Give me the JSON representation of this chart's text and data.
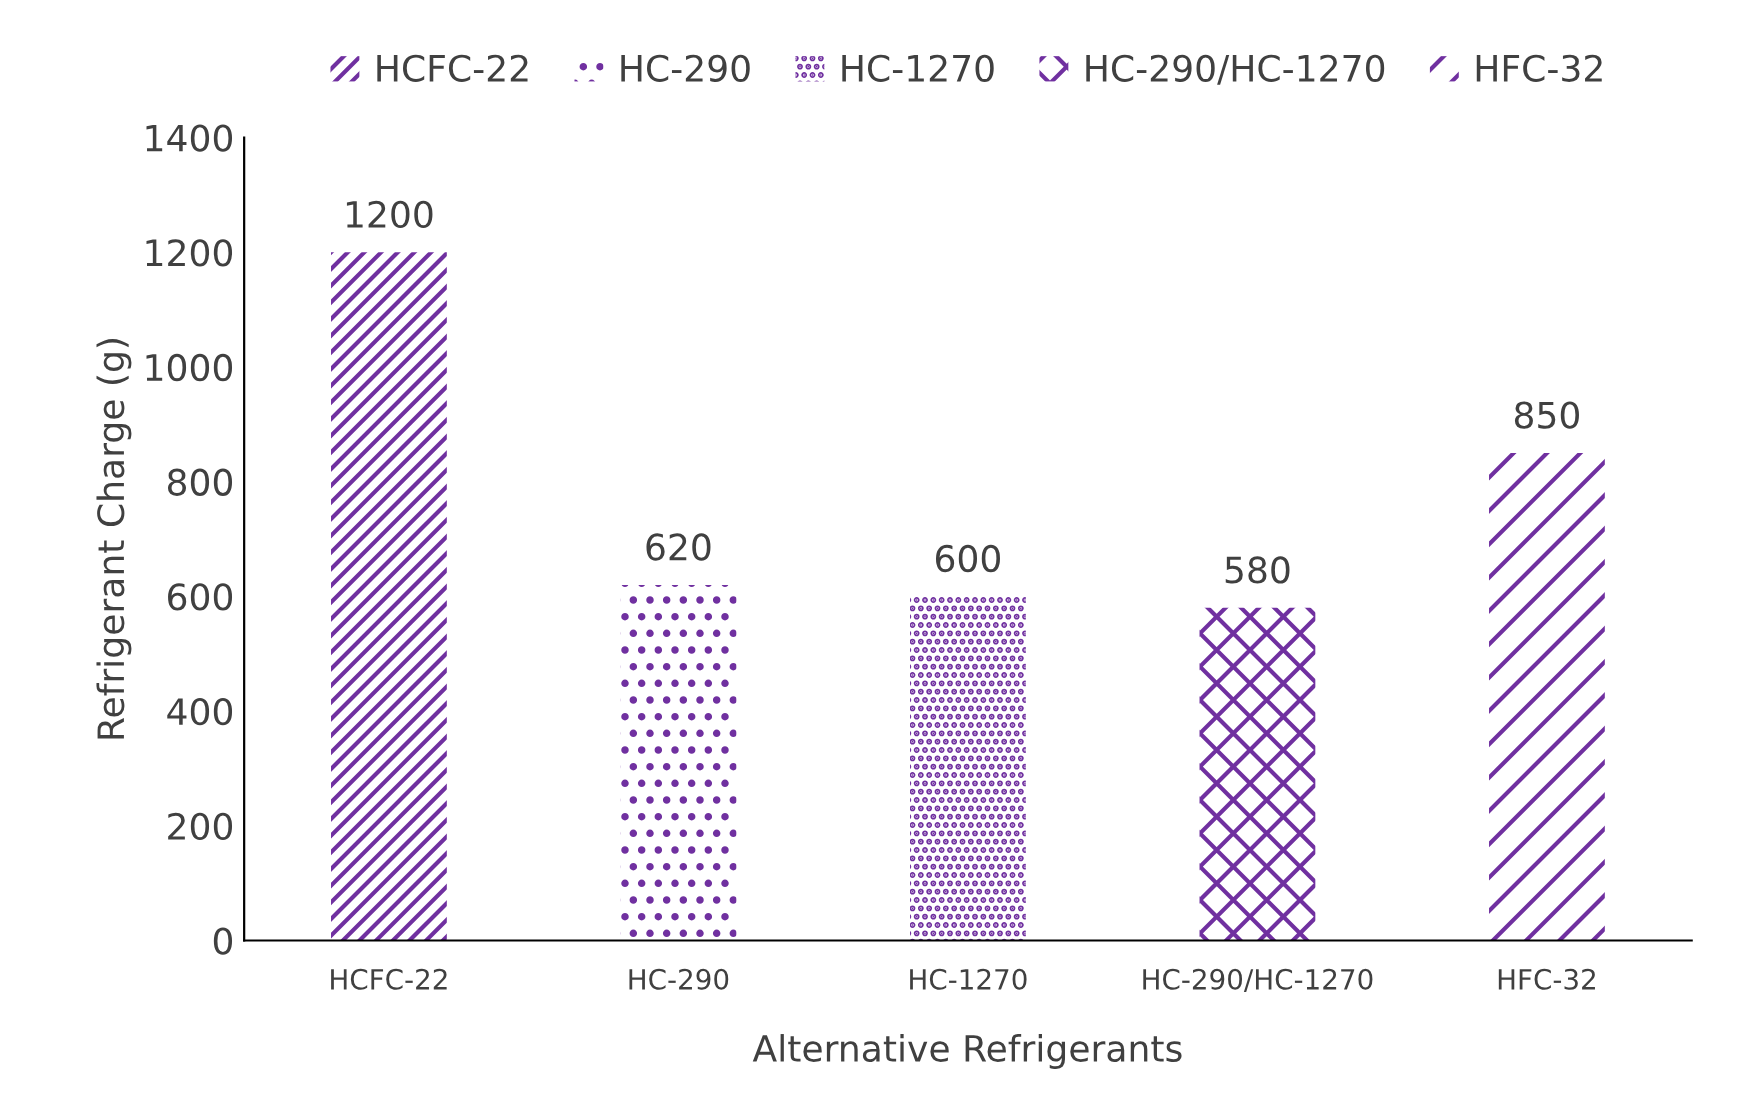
{
  "chart_data": {
    "type": "bar",
    "xlabel": "Alternative Refrigerants",
    "ylabel": "Refrigerant Charge (g)",
    "categories": [
      "HCFC-22",
      "HC-290",
      "HC-1270",
      "HC-290/HC-1270",
      "HFC-32"
    ],
    "series": [
      {
        "name": "HCFC-22",
        "color": "#7030a0",
        "values": [
          1200,
          null,
          null,
          null,
          null
        ]
      },
      {
        "name": "HC-290",
        "color": "#7030a0",
        "values": [
          null,
          620,
          null,
          null,
          null
        ]
      },
      {
        "name": "HC-1270",
        "color": "#7030a0",
        "values": [
          null,
          null,
          600,
          null,
          null
        ]
      },
      {
        "name": "HC-290/HC-1270",
        "color": "#7030a0",
        "values": [
          null,
          null,
          null,
          580,
          null
        ]
      },
      {
        "name": "HFC-32",
        "color": "#7030a0",
        "values": [
          null,
          null,
          null,
          null,
          850
        ]
      }
    ],
    "ylim": [
      0,
      1400
    ],
    "yticks": [
      0,
      200,
      400,
      600,
      800,
      1000,
      1200,
      1400
    ],
    "grid": false,
    "legend": "top",
    "data_labels": true
  }
}
